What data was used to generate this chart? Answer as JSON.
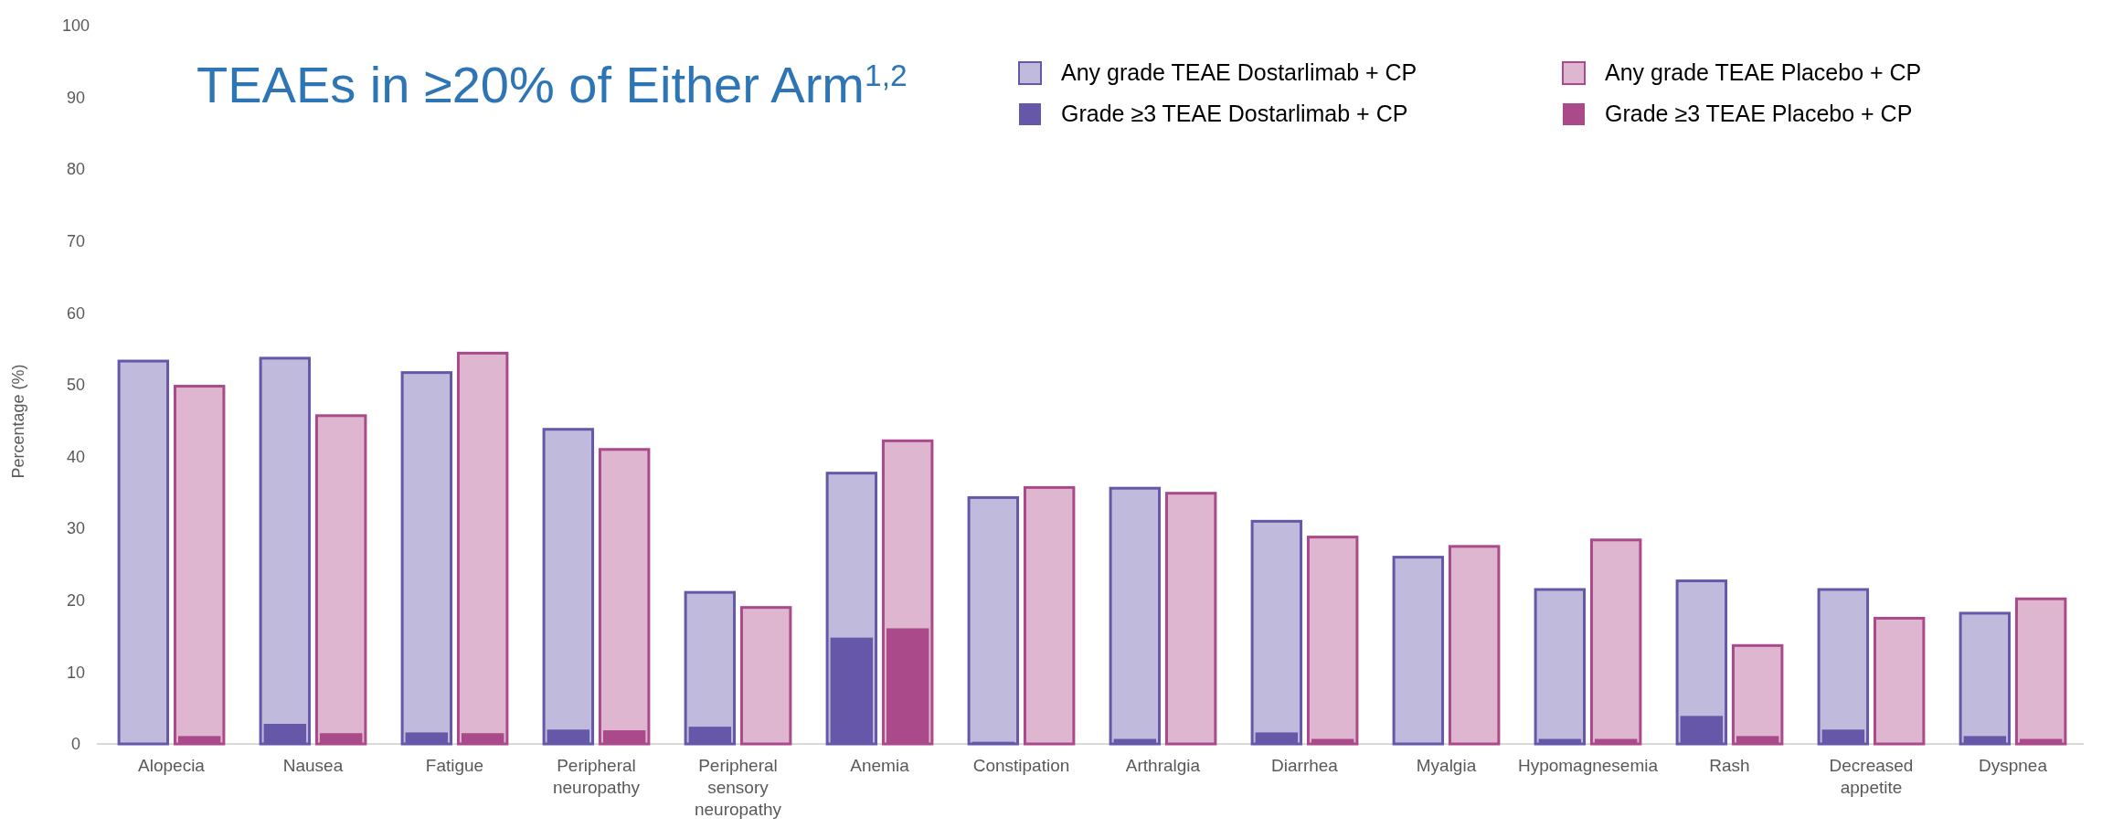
{
  "chart_data": {
    "type": "bar",
    "title": "TEAEs in ≥20% of Either Arm$^{1,2}$",
    "ylabel": "Percentage (%)",
    "categories": [
      "Alopecia",
      "Nausea",
      "Fatigue",
      "Peripheral neuropathy",
      "Peripheral sensory neuropathy",
      "Anemia",
      "Constipation",
      "Arthralgia",
      "Diarrhea",
      "Myalgia",
      "Hypomagnesemia",
      "Rash",
      "Decreased appetite",
      "Dyspnea"
    ],
    "series": [
      {
        "name": "Any grade TEAE Dostarlimab + CP",
        "color": "#c0bbdc",
        "values": [
          53.3,
          53.7,
          51.7,
          43.8,
          21.1,
          37.7,
          34.3,
          35.6,
          31.0,
          26.0,
          21.5,
          22.7,
          21.5,
          18.2
        ]
      },
      {
        "name": "Grade ≥3 TEAE Dostarlimab + CP",
        "color": "#6657a8",
        "values": [
          0,
          2.8,
          1.6,
          2.0,
          2.4,
          14.8,
          0.3,
          0.7,
          1.6,
          0,
          0.7,
          3.9,
          2.0,
          1.1
        ]
      },
      {
        "name": "Any grade TEAE Placebo + CP",
        "color": "#dfb6cf",
        "values": [
          49.8,
          45.7,
          54.4,
          41.0,
          19.0,
          42.2,
          35.7,
          34.9,
          28.8,
          27.5,
          28.4,
          13.7,
          17.5,
          20.2
        ]
      },
      {
        "name": "Grade ≥3 TEAE Placebo + CP",
        "color": "#ab4a8a",
        "values": [
          1.1,
          1.5,
          1.5,
          1.9,
          0,
          16.1,
          0,
          0,
          0.7,
          0,
          0.7,
          1.1,
          0,
          0.7
        ]
      }
    ],
    "ylim": [
      0,
      100
    ],
    "yticks": [
      0,
      10,
      20,
      30,
      40,
      50,
      60,
      70,
      80,
      90,
      100
    ],
    "legend": "top right"
  }
}
